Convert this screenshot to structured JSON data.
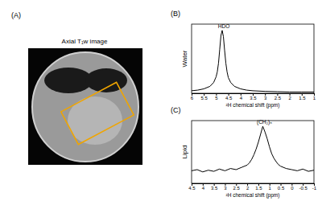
{
  "image_panel": {
    "label": "(A)",
    "title": "Axial T₁w image"
  },
  "chart_data": [
    {
      "type": "line",
      "title": "(B)",
      "ylabel": "Water",
      "xlabel": "²H chemical shift (ppm)",
      "x": [
        6,
        5.75,
        5.5,
        5.25,
        5.1,
        5.0,
        4.95,
        4.9,
        4.85,
        4.8,
        4.75,
        4.7,
        4.65,
        4.6,
        4.55,
        4.5,
        4.4,
        4.25,
        4,
        3.75,
        3.5,
        3,
        2.5,
        2,
        1.5,
        1
      ],
      "values": [
        4,
        5,
        7,
        11,
        17,
        26,
        34,
        48,
        70,
        92,
        100,
        90,
        68,
        48,
        34,
        25,
        17,
        11,
        7,
        5,
        4,
        3,
        2.5,
        2,
        2,
        2
      ],
      "color": "#000000",
      "xlim": [
        6,
        1
      ],
      "xticks": [
        6,
        5.5,
        5,
        4.5,
        4,
        3.5,
        3,
        2.5,
        2,
        1.5,
        1
      ],
      "ylim": [
        0,
        110
      ],
      "tick_labels": "x",
      "annotations": [
        {
          "text": "HDO",
          "x": 4.75,
          "y": 100
        }
      ]
    },
    {
      "type": "line",
      "title": "(C)",
      "ylabel": "Lipid",
      "xlabel": "²H chemical shift (ppm)",
      "x": [
        4.5,
        4.25,
        4,
        3.75,
        3.5,
        3.25,
        3,
        2.75,
        2.5,
        2.25,
        2,
        1.9,
        1.8,
        1.7,
        1.6,
        1.5,
        1.4,
        1.3,
        1.2,
        1.1,
        1.0,
        0.9,
        0.8,
        0.7,
        0.6,
        0.5,
        0.25,
        0,
        -0.25,
        -0.5,
        -0.75,
        -1
      ],
      "values": [
        22,
        24,
        20,
        23,
        21,
        25,
        22,
        26,
        24,
        28,
        32,
        36,
        42,
        50,
        60,
        72,
        86,
        100,
        90,
        78,
        64,
        52,
        44,
        38,
        33,
        30,
        26,
        24,
        22,
        25,
        21,
        23
      ],
      "color": "#000000",
      "xlim": [
        4.5,
        -1
      ],
      "xticks": [
        4.5,
        4,
        3.5,
        3,
        2.5,
        2,
        1.5,
        1,
        0.5,
        0,
        -0.5,
        -1
      ],
      "ylim": [
        0,
        110
      ],
      "tick_labels": "x",
      "annotations": [
        {
          "text": "(CH₂)ₙ",
          "x": 1.3,
          "y": 100
        }
      ]
    }
  ]
}
